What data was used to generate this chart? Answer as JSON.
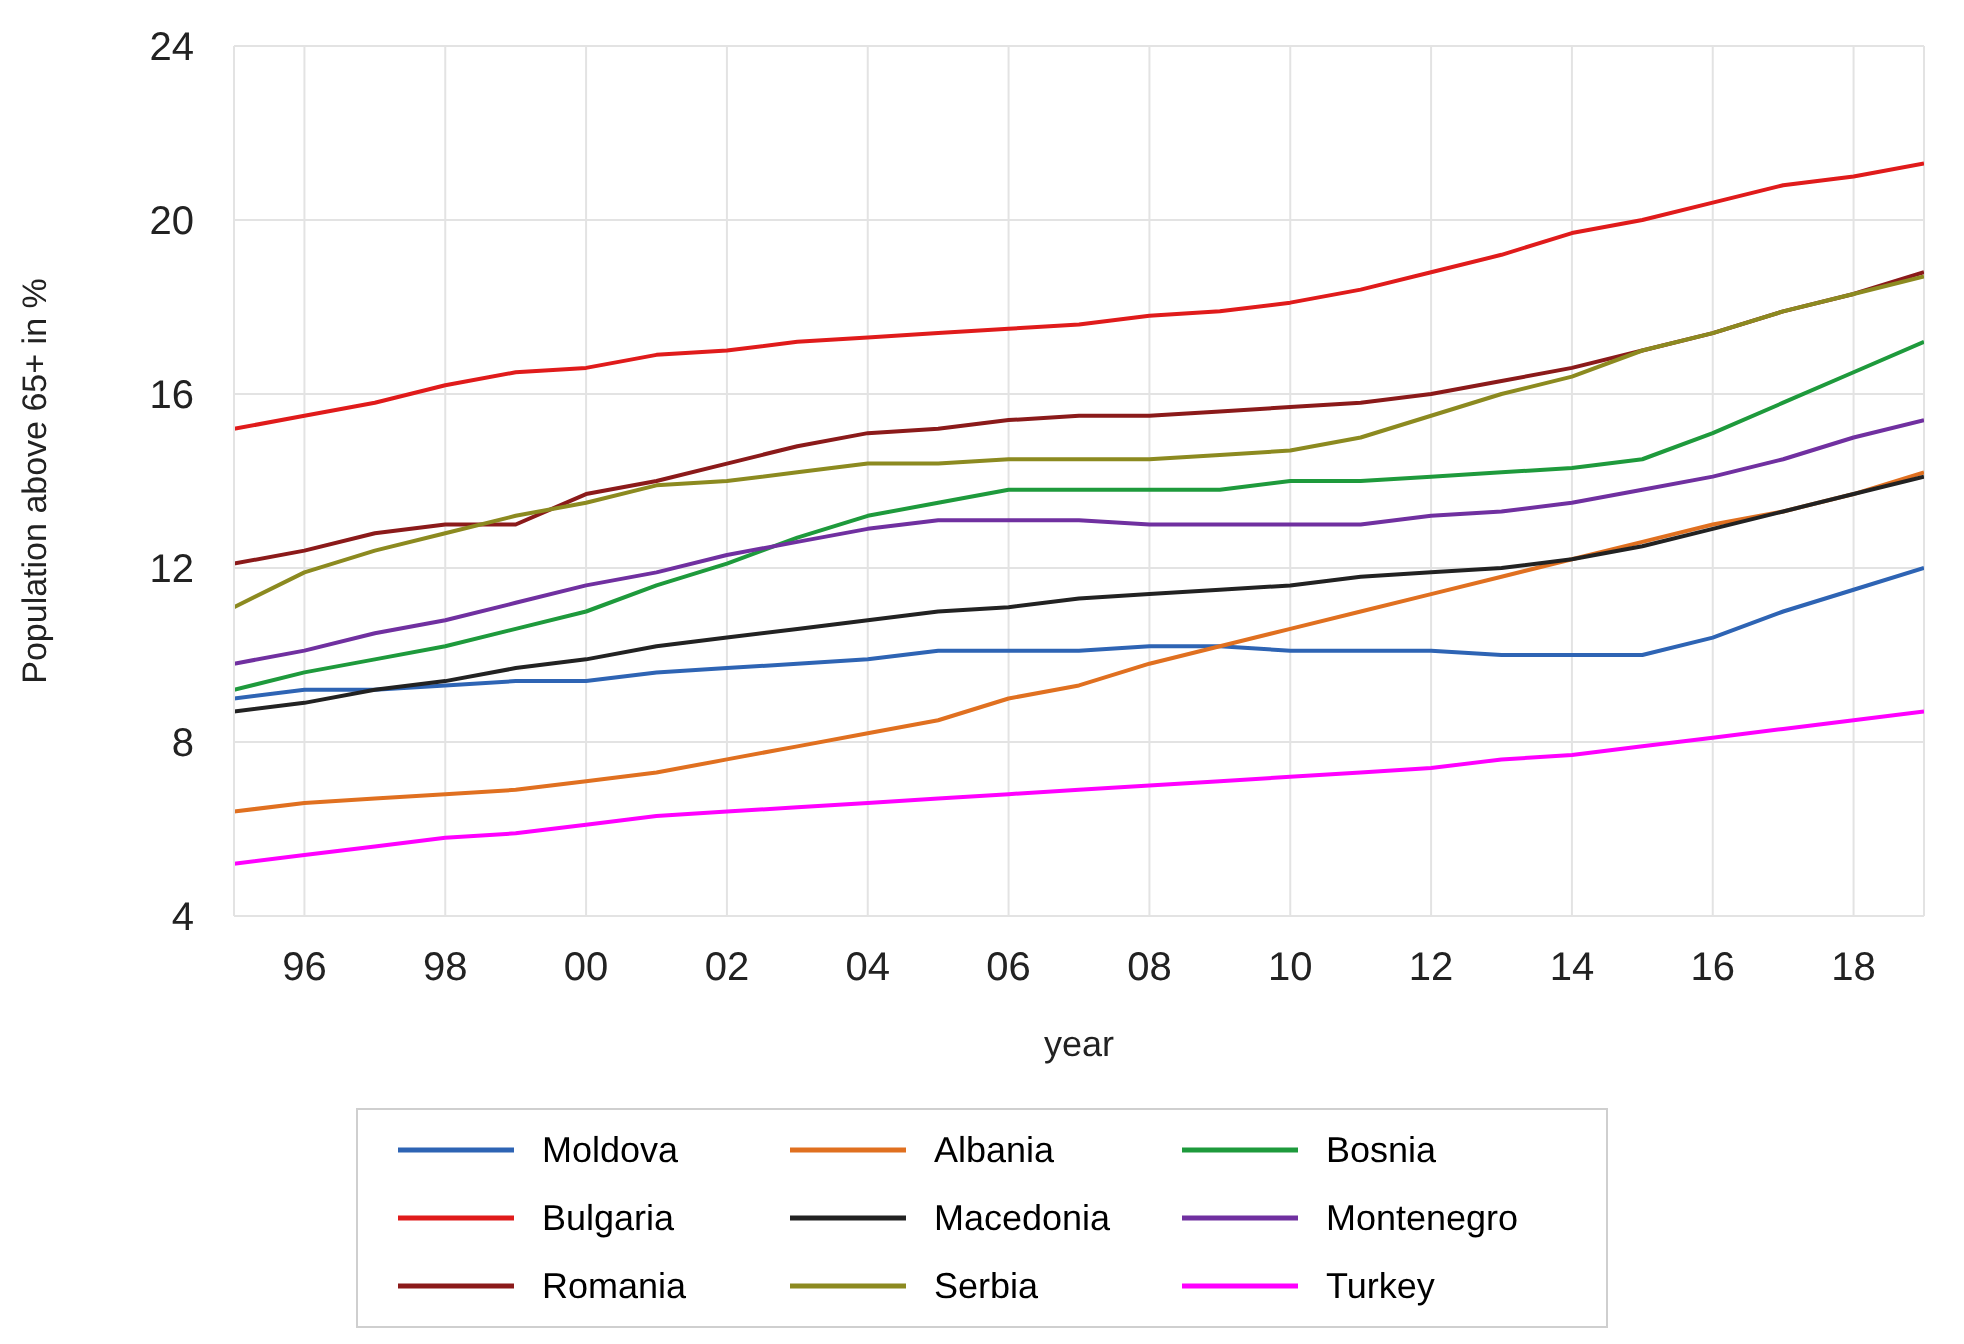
{
  "chart_data": {
    "type": "line",
    "xlabel": "year",
    "ylabel": "Population above 65+ in %",
    "x": [
      1995,
      1996,
      1997,
      1998,
      1999,
      2000,
      2001,
      2002,
      2003,
      2004,
      2005,
      2006,
      2007,
      2008,
      2009,
      2010,
      2011,
      2012,
      2013,
      2014,
      2015,
      2016,
      2017,
      2018,
      2019
    ],
    "xlim": [
      1995,
      2019
    ],
    "xticks": [
      {
        "value": 1996,
        "label": "96"
      },
      {
        "value": 1998,
        "label": "98"
      },
      {
        "value": 2000,
        "label": "00"
      },
      {
        "value": 2002,
        "label": "02"
      },
      {
        "value": 2004,
        "label": "04"
      },
      {
        "value": 2006,
        "label": "06"
      },
      {
        "value": 2008,
        "label": "08"
      },
      {
        "value": 2010,
        "label": "10"
      },
      {
        "value": 2012,
        "label": "12"
      },
      {
        "value": 2014,
        "label": "14"
      },
      {
        "value": 2016,
        "label": "16"
      },
      {
        "value": 2018,
        "label": "18"
      }
    ],
    "ylim": [
      4,
      24
    ],
    "yticks": [
      4,
      8,
      12,
      16,
      20,
      24
    ],
    "grid": true,
    "legend": "bottom",
    "marker": "none",
    "line_style": "solid",
    "series": [
      {
        "name": "Moldova",
        "color": "#2e64b4",
        "values": [
          9.0,
          9.2,
          9.2,
          9.3,
          9.4,
          9.4,
          9.6,
          9.7,
          9.8,
          9.9,
          10.1,
          10.1,
          10.1,
          10.2,
          10.2,
          10.1,
          10.1,
          10.1,
          10.0,
          10.0,
          10.0,
          10.4,
          11.0,
          11.5,
          12.0
        ]
      },
      {
        "name": "Albania",
        "color": "#e07020",
        "values": [
          6.4,
          6.6,
          6.7,
          6.8,
          6.9,
          7.1,
          7.3,
          7.6,
          7.9,
          8.2,
          8.5,
          9.0,
          9.3,
          9.8,
          10.2,
          10.6,
          11.0,
          11.4,
          11.8,
          12.2,
          12.6,
          13.0,
          13.3,
          13.7,
          14.2
        ]
      },
      {
        "name": "Bosnia",
        "color": "#1e9a3c",
        "values": [
          9.2,
          9.6,
          9.9,
          10.2,
          10.6,
          11.0,
          11.6,
          12.1,
          12.7,
          13.2,
          13.5,
          13.8,
          13.8,
          13.8,
          13.8,
          14.0,
          14.0,
          14.1,
          14.2,
          14.3,
          14.5,
          15.1,
          15.8,
          16.5,
          17.2
        ]
      },
      {
        "name": "Bulgaria",
        "color": "#e01b1b",
        "values": [
          15.2,
          15.5,
          15.8,
          16.2,
          16.5,
          16.6,
          16.9,
          17.0,
          17.2,
          17.3,
          17.4,
          17.5,
          17.6,
          17.8,
          17.9,
          18.1,
          18.4,
          18.8,
          19.2,
          19.7,
          20.0,
          20.4,
          20.8,
          21.0,
          21.3
        ]
      },
      {
        "name": "Macedonia",
        "color": "#222222",
        "values": [
          8.7,
          8.9,
          9.2,
          9.4,
          9.7,
          9.9,
          10.2,
          10.4,
          10.6,
          10.8,
          11.0,
          11.1,
          11.3,
          11.4,
          11.5,
          11.6,
          11.8,
          11.9,
          12.0,
          12.2,
          12.5,
          12.9,
          13.3,
          13.7,
          14.1
        ]
      },
      {
        "name": "Montenegro",
        "color": "#7030a0",
        "values": [
          9.8,
          10.1,
          10.5,
          10.8,
          11.2,
          11.6,
          11.9,
          12.3,
          12.6,
          12.9,
          13.1,
          13.1,
          13.1,
          13.0,
          13.0,
          13.0,
          13.0,
          13.2,
          13.3,
          13.5,
          13.8,
          14.1,
          14.5,
          15.0,
          15.4
        ]
      },
      {
        "name": "Romania",
        "color": "#8b1a1a",
        "values": [
          12.1,
          12.4,
          12.8,
          13.0,
          13.0,
          13.7,
          14.0,
          14.4,
          14.8,
          15.1,
          15.2,
          15.4,
          15.5,
          15.5,
          15.6,
          15.7,
          15.8,
          16.0,
          16.3,
          16.6,
          17.0,
          17.4,
          17.9,
          18.3,
          18.8
        ]
      },
      {
        "name": "Serbia",
        "color": "#8c8a20",
        "values": [
          11.1,
          11.9,
          12.4,
          12.8,
          13.2,
          13.5,
          13.9,
          14.0,
          14.2,
          14.4,
          14.4,
          14.5,
          14.5,
          14.5,
          14.6,
          14.7,
          15.0,
          15.5,
          16.0,
          16.4,
          17.0,
          17.4,
          17.9,
          18.3,
          18.7
        ]
      },
      {
        "name": "Turkey",
        "color": "#ff00ff",
        "values": [
          5.2,
          5.4,
          5.6,
          5.8,
          5.9,
          6.1,
          6.3,
          6.4,
          6.5,
          6.6,
          6.7,
          6.8,
          6.9,
          7.0,
          7.1,
          7.2,
          7.3,
          7.4,
          7.6,
          7.7,
          7.9,
          8.1,
          8.3,
          8.5,
          8.7
        ]
      }
    ]
  }
}
